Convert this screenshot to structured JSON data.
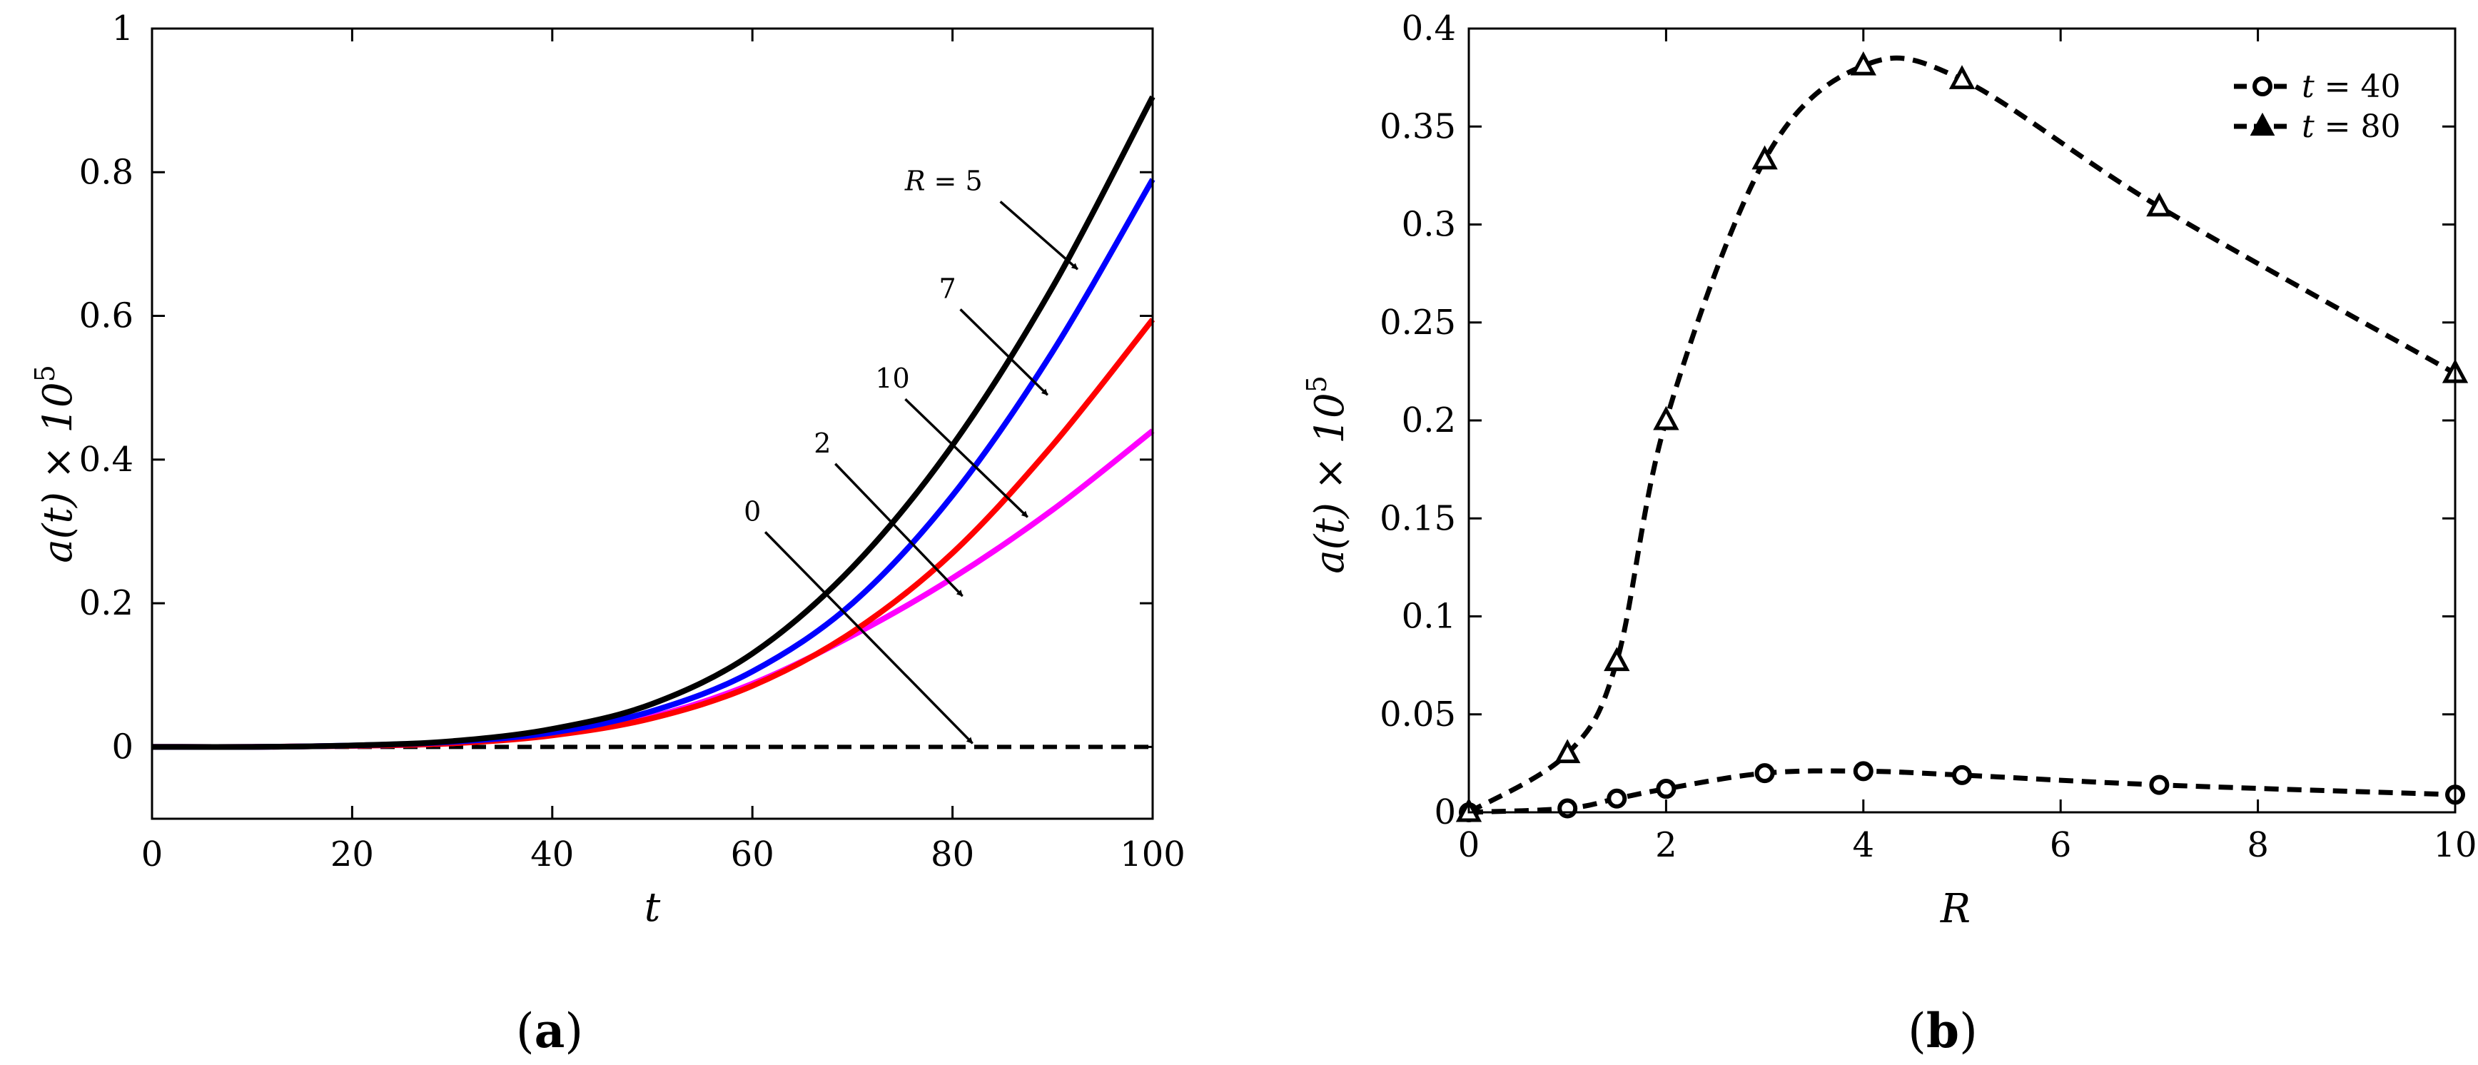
{
  "chart_data": [
    {
      "type": "line",
      "panel_label": "a",
      "xlabel": "t",
      "ylabel": {
        "base": "a(t) × 10",
        "exp": "5"
      },
      "xlim": [
        0,
        100
      ],
      "ylim": [
        -0.1,
        1
      ],
      "xticks": [
        "0",
        "20",
        "40",
        "60",
        "80",
        "100"
      ],
      "yticks": [
        "0",
        "0.2",
        "0.4",
        "0.6",
        "0.8",
        "1"
      ],
      "x": [
        0,
        10,
        20,
        30,
        40,
        50,
        60,
        70,
        80,
        90,
        100
      ],
      "series": [
        {
          "name": "R = 5",
          "color": "#000000",
          "dash": "solid",
          "values": [
            0,
            0,
            0.002,
            0.008,
            0.025,
            0.06,
            0.13,
            0.25,
            0.42,
            0.64,
            0.905
          ]
        },
        {
          "name": "7",
          "color": "#0000ff",
          "dash": "solid",
          "values": [
            0,
            0,
            0.002,
            0.007,
            0.02,
            0.05,
            0.105,
            0.2,
            0.35,
            0.55,
            0.79
          ]
        },
        {
          "name": "10",
          "color": "#ff0000",
          "dash": "solid",
          "values": [
            0,
            0,
            0.0015,
            0.005,
            0.016,
            0.04,
            0.085,
            0.16,
            0.27,
            0.42,
            0.595
          ]
        },
        {
          "name": "2",
          "color": "#ff00ff",
          "dash": "solid",
          "values": [
            0,
            0,
            0.0015,
            0.005,
            0.017,
            0.042,
            0.088,
            0.155,
            0.235,
            0.33,
            0.44
          ]
        },
        {
          "name": "0",
          "color": "#000000",
          "dash": "dashed",
          "values": [
            0,
            0,
            0,
            0,
            0,
            0,
            0,
            0,
            0,
            0,
            0
          ]
        }
      ],
      "annotations": [
        {
          "var": "R",
          "text": " = 5",
          "x_text": 83,
          "y_text": 0.775,
          "x_arrow": 92.5,
          "y_arrow": 0.665
        },
        {
          "text": "7",
          "x_text": 79.5,
          "y_text": 0.625,
          "x_arrow": 89.5,
          "y_arrow": 0.49
        },
        {
          "text": "10",
          "x_text": 74,
          "y_text": 0.5,
          "x_arrow": 87.5,
          "y_arrow": 0.32
        },
        {
          "text": "2",
          "x_text": 67,
          "y_text": 0.41,
          "x_arrow": 81,
          "y_arrow": 0.21
        },
        {
          "text": "0",
          "x_text": 60,
          "y_text": 0.315,
          "x_arrow": 82,
          "y_arrow": 0.005
        }
      ]
    },
    {
      "type": "line",
      "panel_label": "b",
      "xlabel": "R",
      "ylabel": {
        "base": "a(t) × 10",
        "exp": "5"
      },
      "xlim": [
        0,
        10
      ],
      "ylim": [
        0,
        0.4
      ],
      "xticks": [
        "0",
        "2",
        "4",
        "6",
        "8",
        "10"
      ],
      "yticks": [
        "0",
        "0.05",
        "0.1",
        "0.15",
        "0.2",
        "0.25",
        "0.3",
        "0.35",
        "0.4"
      ],
      "x": [
        0,
        1,
        1.5,
        2,
        3,
        4,
        5,
        7,
        10
      ],
      "legend_position": "top-right",
      "series": [
        {
          "name": "t = 40",
          "var": "t",
          "value_text": " = 40",
          "marker": "circle",
          "dash": "dashed",
          "color": "#000000",
          "values": [
            0,
            0.002,
            0.007,
            0.012,
            0.02,
            0.021,
            0.019,
            0.014,
            0.009
          ]
        },
        {
          "name": "t = 80",
          "var": "t",
          "value_text": " = 80",
          "marker": "triangle",
          "dash": "dashed",
          "color": "#000000",
          "values": [
            0,
            0.03,
            0.077,
            0.2,
            0.333,
            0.381,
            0.374,
            0.309,
            0.224
          ]
        }
      ]
    }
  ]
}
